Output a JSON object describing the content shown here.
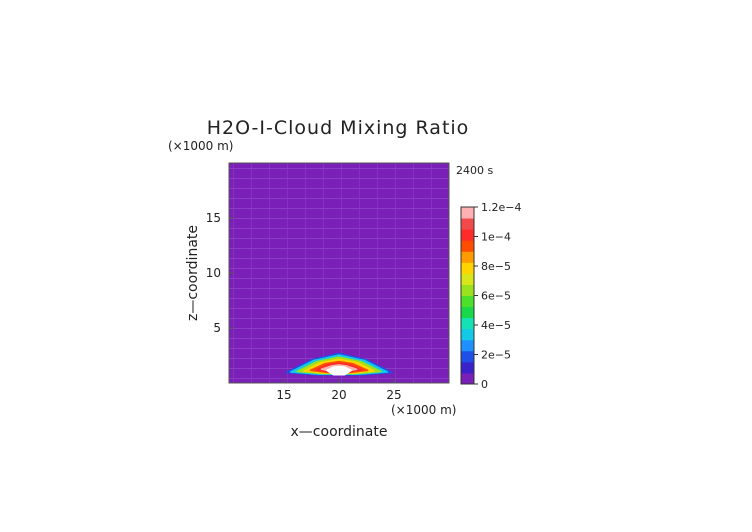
{
  "chart_data": {
    "type": "heatmap",
    "title": "H2O-I-Cloud Mixing Ratio",
    "time_label": "2400 s",
    "xlabel": "x—coordinate",
    "ylabel": "z—coordinate",
    "x_unit": "(×1000 m)",
    "y_unit": "(×1000 m)",
    "xlim": [
      10,
      30
    ],
    "ylim": [
      0,
      20
    ],
    "x_ticks": [
      15,
      20,
      25
    ],
    "y_ticks": [
      5,
      10,
      15
    ],
    "colorbar": {
      "range": [
        0,
        0.00012
      ],
      "tick_labels": [
        "0",
        "2e−5",
        "4e−5",
        "6e−5",
        "8e−5",
        "1e−4",
        "1.2e−4"
      ],
      "colors": [
        "#7a1fb8",
        "#3a22c8",
        "#1f4fe6",
        "#1e90ff",
        "#14c8e8",
        "#16e0b6",
        "#19d84a",
        "#4de02a",
        "#9be21e",
        "#d8e61a",
        "#ffd400",
        "#ff9a00",
        "#ff4d00",
        "#ff2b2b",
        "#f04a4a",
        "#ffb0b0"
      ]
    },
    "cloud_contours": [
      {
        "level": 1e-05,
        "color": "#1f4fe6",
        "x": [
          15.2,
          17.5,
          20.0,
          22.5,
          24.8,
          22.0,
          18.0
        ],
        "z": [
          0.95,
          2.1,
          2.7,
          2.1,
          0.95,
          0.75,
          0.75
        ]
      },
      {
        "level": 4e-05,
        "color": "#14c8e8",
        "x": [
          15.6,
          17.7,
          20.0,
          22.3,
          24.4,
          21.8,
          18.2
        ],
        "z": [
          1.0,
          2.05,
          2.55,
          2.05,
          1.0,
          0.8,
          0.8
        ]
      },
      {
        "level": 7e-05,
        "color": "#9be21e",
        "x": [
          16.2,
          18.0,
          20.0,
          22.0,
          23.8,
          21.5,
          18.5
        ],
        "z": [
          1.05,
          1.95,
          2.35,
          1.95,
          1.05,
          0.85,
          0.85
        ]
      },
      {
        "level": 9e-05,
        "color": "#ffd400",
        "x": [
          16.8,
          18.3,
          20.0,
          21.7,
          23.2,
          21.3,
          18.7
        ],
        "z": [
          1.1,
          1.85,
          2.15,
          1.85,
          1.1,
          0.9,
          0.9
        ]
      },
      {
        "level": 0.0001,
        "color": "#ff4d00",
        "x": [
          17.4,
          18.7,
          20.0,
          21.3,
          22.6,
          21.0,
          19.0
        ],
        "z": [
          1.15,
          1.75,
          1.95,
          1.75,
          1.15,
          0.95,
          0.95
        ]
      },
      {
        "level": 0.00011,
        "color": "#ff2b2b",
        "x": [
          17.9,
          19.0,
          20.0,
          21.0,
          22.1,
          20.8,
          19.2
        ],
        "z": [
          1.2,
          1.65,
          1.8,
          1.65,
          1.2,
          1.0,
          1.0
        ]
      },
      {
        "level": 0.00012,
        "color": "#ffb0b0",
        "x": [
          18.4,
          19.3,
          20.0,
          20.7,
          21.6,
          20.6,
          19.4
        ],
        "z": [
          1.25,
          1.55,
          1.65,
          1.55,
          1.25,
          1.05,
          1.05
        ]
      },
      {
        "level": 0.00013,
        "color": "#ffffff",
        "x": [
          18.9,
          19.5,
          20.0,
          20.5,
          21.1,
          20.5,
          19.5
        ],
        "z": [
          1.15,
          1.45,
          1.5,
          1.45,
          1.15,
          0.75,
          0.75
        ]
      }
    ]
  }
}
